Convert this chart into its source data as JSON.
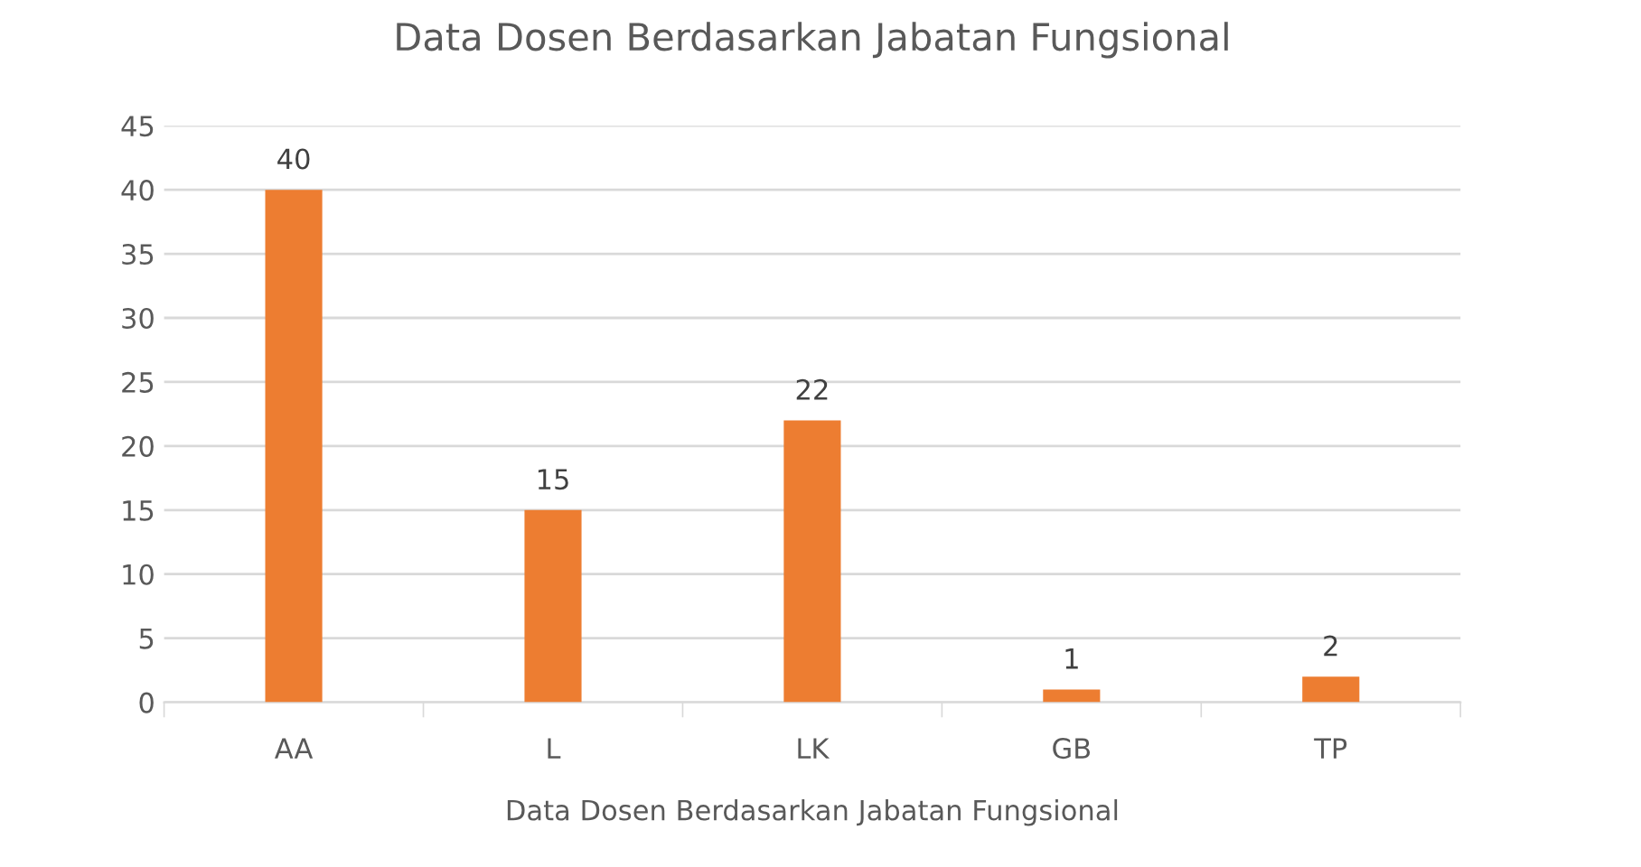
{
  "chart_data": {
    "type": "bar",
    "title": "Data Dosen Berdasarkan Jabatan Fungsional",
    "xlabel": "Data Dosen Berdasarkan Jabatan Fungsional",
    "categories": [
      "AA",
      "L",
      "LK",
      "GB",
      "TP"
    ],
    "values": [
      40,
      15,
      22,
      1,
      2
    ],
    "color": "#ed7d31",
    "ylim": [
      0,
      45
    ],
    "yticks": [
      0,
      5,
      10,
      15,
      20,
      25,
      30,
      35,
      40,
      45
    ],
    "grid": "y",
    "data_labels": true
  }
}
